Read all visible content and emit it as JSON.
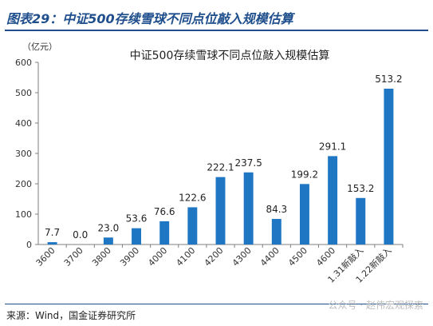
{
  "figure": {
    "title": "图表29：中证500存续雪球不同点位敲入规模估算",
    "source": "来源：Wind，国金证券研究所",
    "watermark": "公众号 · 赵伟宏观探索"
  },
  "colors": {
    "accent": "#1f4e8c",
    "bar": "#1f77c4",
    "axis": "#7f7f7f"
  },
  "chart_data": {
    "type": "bar",
    "title": "中证500存续雪球不同点位敲入规模估算",
    "unit_label": "（亿元）",
    "categories": [
      "3600",
      "3700",
      "3800",
      "3900",
      "4000",
      "4100",
      "4200",
      "4300",
      "4400",
      "4500",
      "4600",
      "1.31新敲入",
      "1.22新敲入"
    ],
    "values": [
      7.7,
      0.0,
      23.0,
      53.6,
      76.6,
      122.6,
      222.1,
      237.5,
      84.3,
      199.2,
      291.1,
      153.2,
      513.2
    ],
    "value_labels": [
      "7.7",
      "0.0",
      "23.0",
      "53.6",
      "76.6",
      "122.6",
      "222.1",
      "237.5",
      "84.3",
      "199.2",
      "291.1",
      "153.2",
      "513.2"
    ],
    "ylim": [
      0,
      600
    ],
    "yticks": [
      0,
      100,
      200,
      300,
      400,
      500,
      600
    ],
    "grid": false,
    "legend": "none"
  }
}
